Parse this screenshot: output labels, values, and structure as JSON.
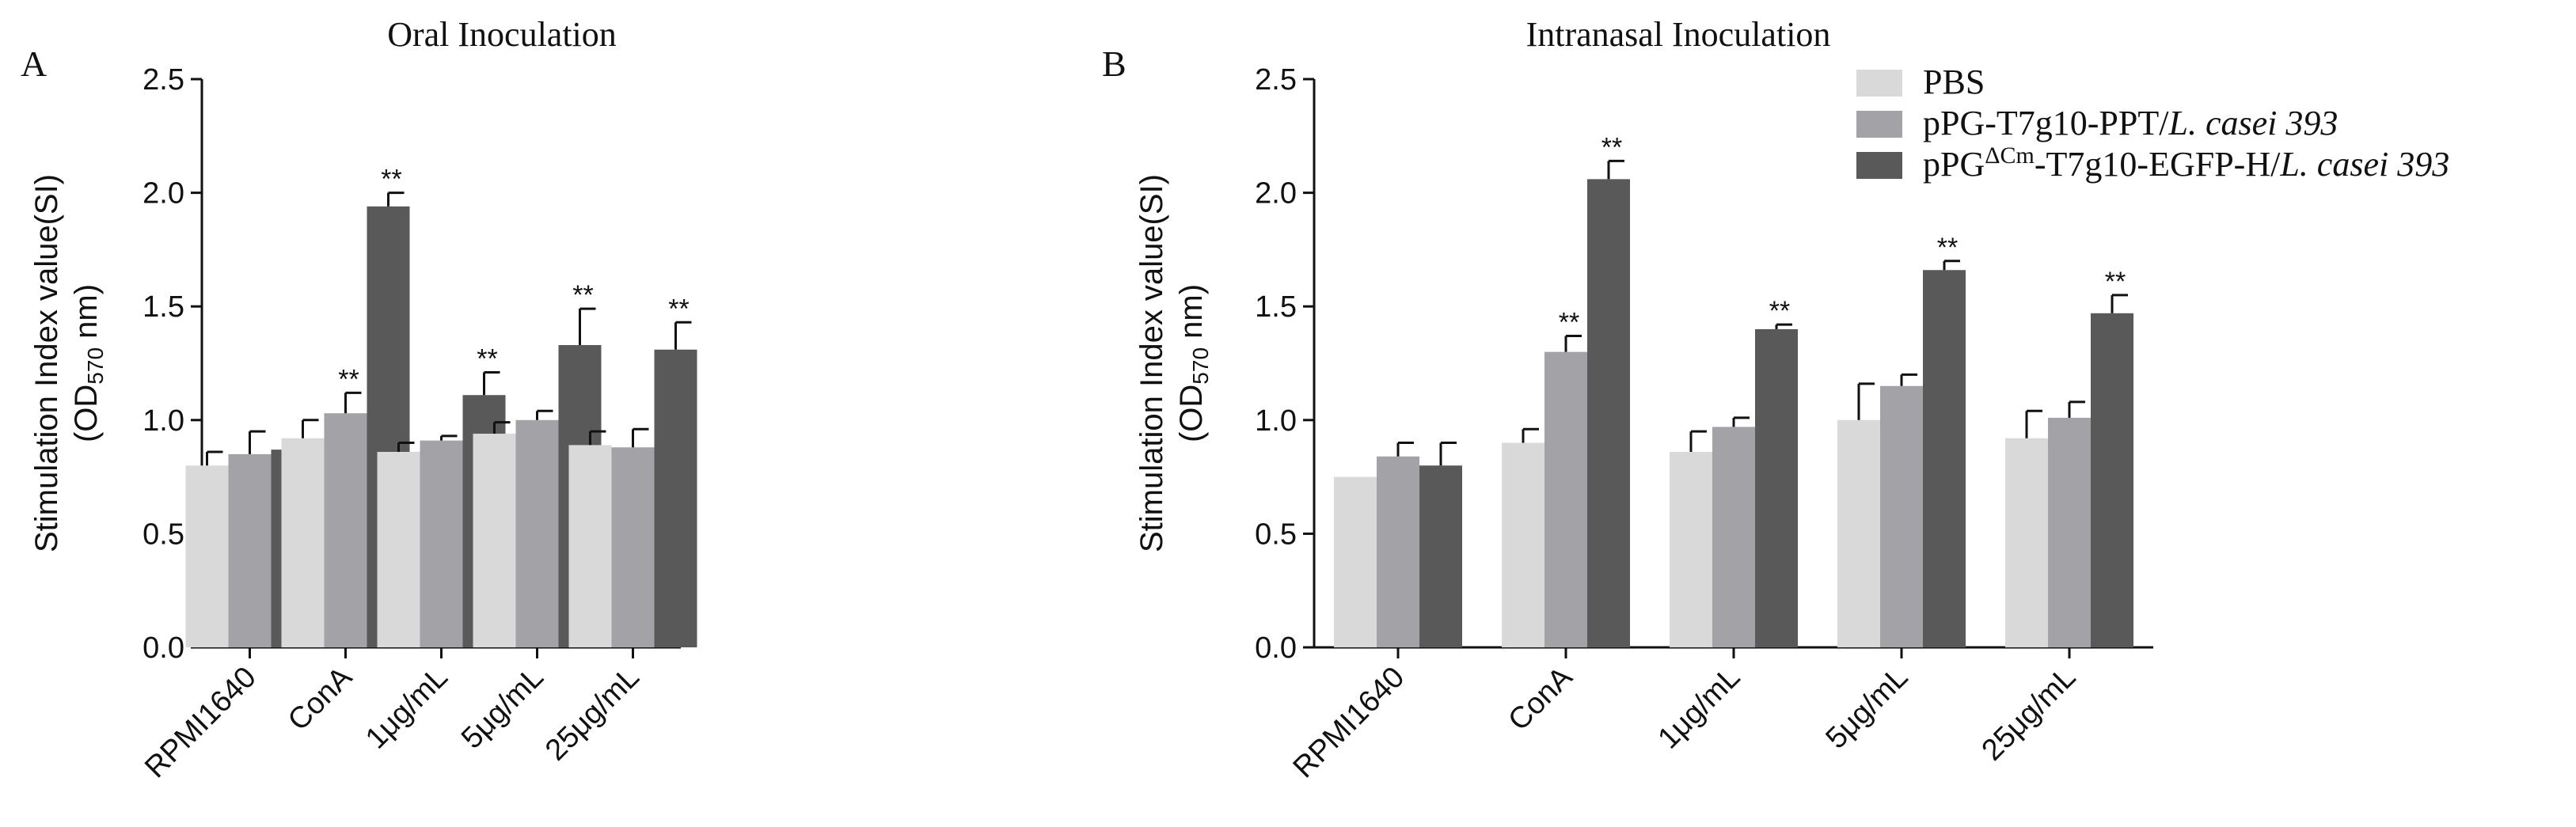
{
  "chart_data": [
    {
      "type": "bar",
      "panel_label": "A",
      "title": "Oral Inoculation",
      "ylabel_line1": "Stimulation Index value(SI)",
      "ylabel_line2_prefix": "(OD",
      "ylabel_line2_sub": "570",
      "ylabel_line2_suffix": " nm)",
      "xlabel": "",
      "ylim": [
        0,
        2.5
      ],
      "yticks": [
        "0.0",
        "0.5",
        "1.0",
        "1.5",
        "2.0",
        "2.5"
      ],
      "categories": [
        "RPMI1640",
        "ConA",
        "1μg/mL",
        "5μg/mL",
        "25μg/mL"
      ],
      "series": [
        {
          "name": "PBS",
          "values": [
            0.8,
            0.92,
            0.86,
            0.94,
            0.89
          ],
          "errors": [
            0.06,
            0.08,
            0.04,
            0.05,
            0.06
          ],
          "sig": [
            "",
            "",
            "",
            "",
            ""
          ]
        },
        {
          "name": "pPG-T7g10-PPT/L. casei 393",
          "values": [
            0.85,
            1.03,
            0.91,
            1.0,
            0.88
          ],
          "errors": [
            0.1,
            0.09,
            0.02,
            0.04,
            0.08
          ],
          "sig": [
            "",
            "**",
            "",
            "",
            ""
          ]
        },
        {
          "name": "pPGΔCm-T7g10-EGFP-H/L. casei 393",
          "values": [
            0.87,
            1.94,
            1.11,
            1.33,
            1.31
          ],
          "errors": [
            0.0,
            0.06,
            0.1,
            0.16,
            0.12
          ],
          "sig": [
            "",
            "**",
            "**",
            "**",
            "**"
          ]
        }
      ]
    },
    {
      "type": "bar",
      "panel_label": "B",
      "title": "Intranasal Inoculation",
      "ylabel_line1": "Stimulation Index value(SI)",
      "ylabel_line2_prefix": "(OD",
      "ylabel_line2_sub": "570",
      "ylabel_line2_suffix": " nm)",
      "xlabel": "",
      "ylim": [
        0,
        2.5
      ],
      "yticks": [
        "0.0",
        "0.5",
        "1.0",
        "1.5",
        "2.0",
        "2.5"
      ],
      "categories": [
        "RPMI1640",
        "ConA",
        "1μg/mL",
        "5μg/mL",
        "25μg/mL"
      ],
      "series": [
        {
          "name": "PBS",
          "values": [
            0.75,
            0.9,
            0.86,
            1.0,
            0.92
          ],
          "errors": [
            0.0,
            0.06,
            0.09,
            0.16,
            0.12
          ],
          "sig": [
            "",
            "",
            "",
            "",
            ""
          ]
        },
        {
          "name": "pPG-T7g10-PPT/L. casei 393",
          "values": [
            0.84,
            1.3,
            0.97,
            1.15,
            1.01
          ],
          "errors": [
            0.06,
            0.07,
            0.04,
            0.05,
            0.07
          ],
          "sig": [
            "",
            "**",
            "",
            "",
            ""
          ]
        },
        {
          "name": "pPGΔCm-T7g10-EGFP-H/L. casei 393",
          "values": [
            0.8,
            2.06,
            1.4,
            1.66,
            1.47
          ],
          "errors": [
            0.1,
            0.08,
            0.02,
            0.04,
            0.08
          ],
          "sig": [
            "",
            "**",
            "**",
            "**",
            "**"
          ]
        }
      ]
    }
  ],
  "legend": {
    "position": "top-right",
    "entries": [
      {
        "name": "PBS",
        "color": "#d9d9d9",
        "parts": [
          {
            "text": "PBS",
            "style": "normal"
          }
        ]
      },
      {
        "name": "pPG-T7g10-PPT/L. casei 393",
        "color": "#a3a3a7",
        "parts": [
          {
            "text": "pPG-T7g10-PPT/",
            "style": "normal"
          },
          {
            "text": "L. casei 393",
            "style": "italic"
          }
        ]
      },
      {
        "name": "pPGΔCm-T7g10-EGFP-H/L. casei 393",
        "color": "#595959",
        "parts": [
          {
            "text": "pPG",
            "style": "normal"
          },
          {
            "text": "ΔCm",
            "style": "sup"
          },
          {
            "text": "-T7g10-EGFP-H/",
            "style": "normal"
          },
          {
            "text": "L. casei 393",
            "style": "italic"
          }
        ]
      }
    ]
  },
  "colors": {
    "series": [
      "#d9d9d9",
      "#a3a3a7",
      "#595959"
    ],
    "axis": "#111111"
  }
}
